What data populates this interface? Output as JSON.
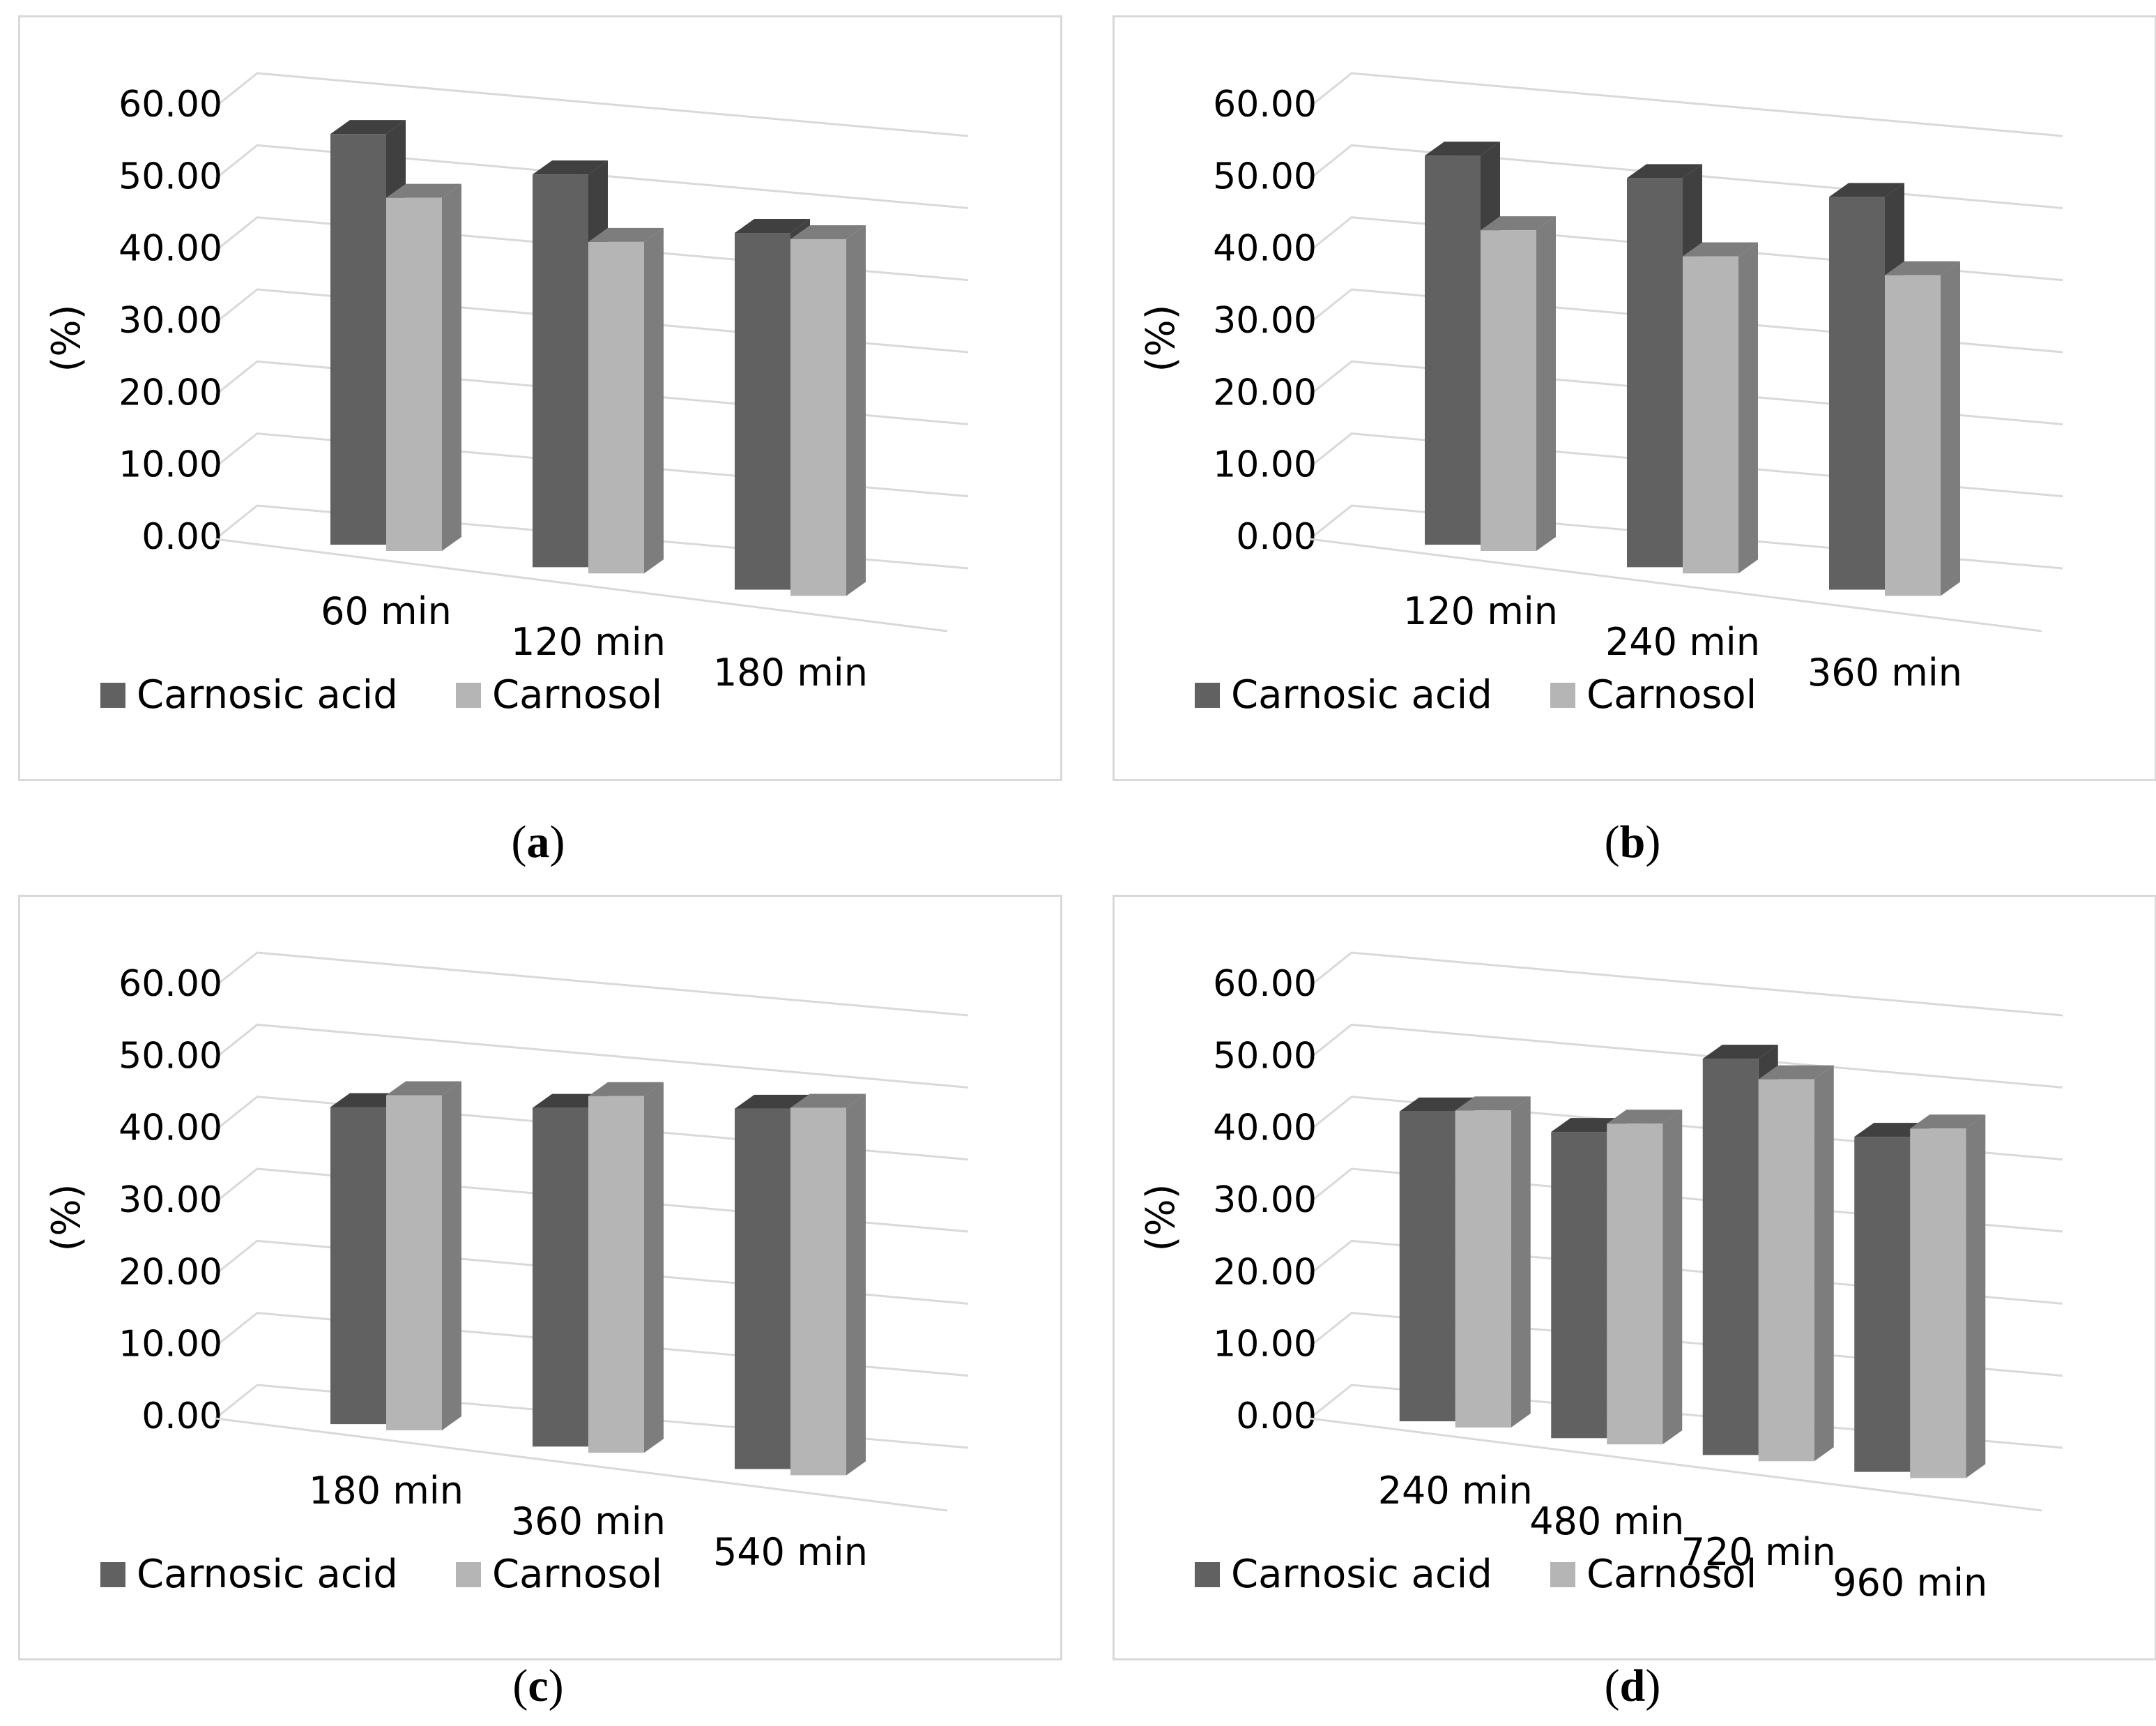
{
  "colors": {
    "carnosic_front": "#616161",
    "carnosic_side": "#404040",
    "carnosol_front": "#b5b5b5",
    "carnosol_side": "#7d7d7d",
    "grid": "#d9d9d9",
    "text": "#000000"
  },
  "chart_data": [
    {
      "type": "bar",
      "panel": "a",
      "ylabel": "(%)",
      "ylim": [
        0,
        60
      ],
      "yticks": [
        "0.00",
        "10.00",
        "20.00",
        "30.00",
        "40.00",
        "50.00",
        "60.00"
      ],
      "categories": [
        "60 min",
        "120 min",
        "180 min"
      ],
      "series": [
        {
          "name": "Carnosic acid",
          "values": [
            57.0,
            54.5,
            49.5
          ]
        },
        {
          "name": "Carnosol",
          "values": [
            49.0,
            46.0,
            49.5
          ]
        }
      ],
      "legend_position": "bottom-left",
      "caption": "a"
    },
    {
      "type": "bar",
      "panel": "b",
      "ylabel": "(%)",
      "ylim": [
        0,
        60
      ],
      "yticks": [
        "0.00",
        "10.00",
        "20.00",
        "30.00",
        "40.00",
        "50.00",
        "60.00"
      ],
      "categories": [
        "120 min",
        "240 min",
        "360 min"
      ],
      "series": [
        {
          "name": "Carnosic acid",
          "values": [
            54.0,
            54.0,
            54.5
          ]
        },
        {
          "name": "Carnosol",
          "values": [
            44.5,
            44.0,
            44.5
          ]
        }
      ],
      "legend_position": "bottom-left",
      "caption": "b"
    },
    {
      "type": "bar",
      "panel": "c",
      "ylabel": "(%)",
      "ylim": [
        0,
        60
      ],
      "yticks": [
        "0.00",
        "10.00",
        "20.00",
        "30.00",
        "40.00",
        "50.00",
        "60.00"
      ],
      "categories": [
        "180 min",
        "360 min",
        "540 min"
      ],
      "series": [
        {
          "name": "Carnosic acid",
          "values": [
            44.0,
            47.0,
            50.0
          ]
        },
        {
          "name": "Carnosol",
          "values": [
            46.5,
            49.5,
            51.0
          ]
        }
      ],
      "legend_position": "bottom-left",
      "caption": "c"
    },
    {
      "type": "bar",
      "panel": "d",
      "ylabel": "(%)",
      "ylim": [
        0,
        60
      ],
      "yticks": [
        "0.00",
        "10.00",
        "20.00",
        "30.00",
        "40.00",
        "50.00",
        "60.00"
      ],
      "categories": [
        "240 min",
        "480 min",
        "720 min",
        "960 min"
      ],
      "series": [
        {
          "name": "Carnosic acid",
          "values": [
            43.0,
            42.5,
            55.0,
            46.5
          ]
        },
        {
          "name": "Carnosol",
          "values": [
            44.0,
            44.5,
            53.0,
            48.5
          ]
        }
      ],
      "legend_position": "bottom-left",
      "caption": "d"
    }
  ]
}
